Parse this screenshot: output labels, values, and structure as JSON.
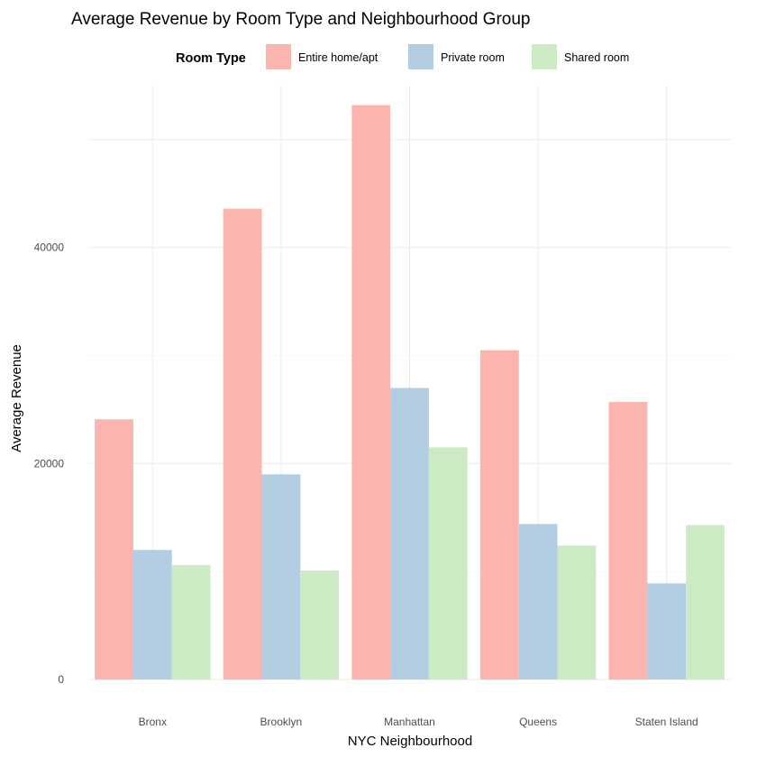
{
  "chart_data": {
    "type": "bar",
    "title": "Average Revenue by Room Type and Neighbourhood Group",
    "xlabel": "NYC Neighbourhood",
    "ylabel": "Average Revenue",
    "categories": [
      "Bronx",
      "Brooklyn",
      "Manhattan",
      "Queens",
      "Staten Island"
    ],
    "yticks": [
      0,
      20000,
      40000
    ],
    "ylim": [
      0,
      55000
    ],
    "grid": true,
    "legend": {
      "title": "Room Type",
      "position": "top"
    },
    "series": [
      {
        "name": "Entire home/apt",
        "color": "#FBB4AE",
        "values": [
          24100,
          43600,
          53200,
          30500,
          25700
        ]
      },
      {
        "name": "Private room",
        "color": "#B3CDE3",
        "values": [
          12000,
          19000,
          27000,
          14400,
          8900
        ]
      },
      {
        "name": "Shared room",
        "color": "#CCEBC5",
        "values": [
          10600,
          10100,
          21500,
          12400,
          14300
        ]
      }
    ]
  }
}
